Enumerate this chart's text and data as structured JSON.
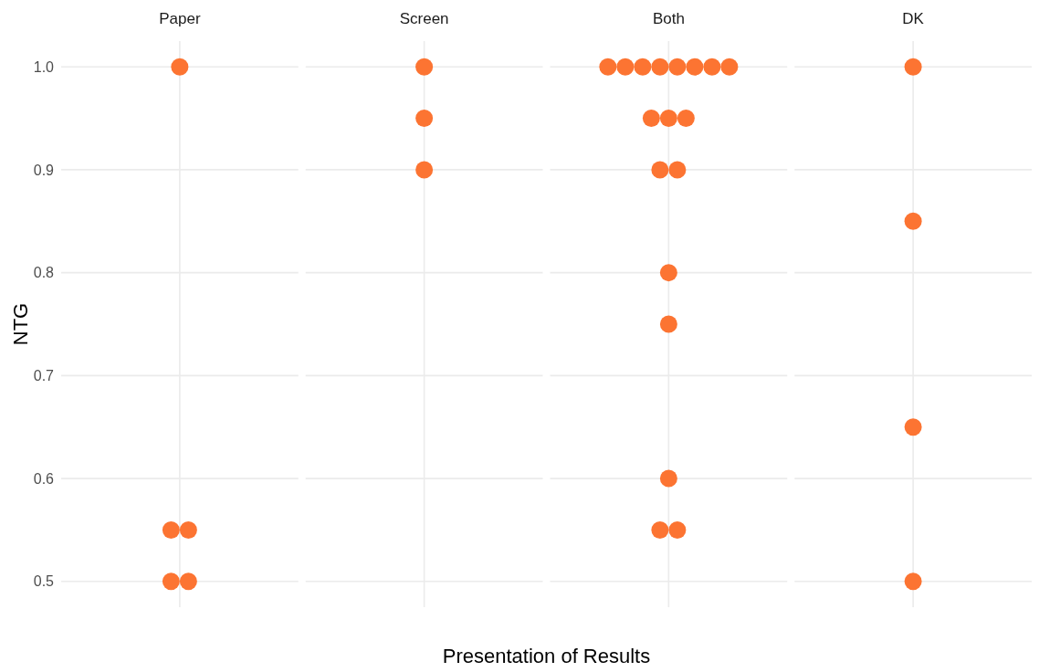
{
  "chart_data": {
    "type": "scatter",
    "xlabel": "Presentation of Results",
    "ylabel": "NTG",
    "categories": [
      "Paper",
      "Screen",
      "Both",
      "DK"
    ],
    "series": [
      {
        "color": "#fc7432",
        "x": [
          "Paper",
          "Paper",
          "Paper",
          "Paper",
          "Paper",
          "Screen",
          "Screen",
          "Screen",
          "Both",
          "Both",
          "Both",
          "Both",
          "Both",
          "Both",
          "Both",
          "Both",
          "Both",
          "Both",
          "Both",
          "Both",
          "Both",
          "Both",
          "Both",
          "Both",
          "Both",
          "Both",
          "DK",
          "DK",
          "DK",
          "DK"
        ],
        "values": [
          1.0,
          0.55,
          0.55,
          0.5,
          0.5,
          1.0,
          0.95,
          0.9,
          1.0,
          1.0,
          1.0,
          1.0,
          1.0,
          1.0,
          1.0,
          1.0,
          0.95,
          0.95,
          0.95,
          0.9,
          0.9,
          0.8,
          0.75,
          0.6,
          0.55,
          0.55,
          1.0,
          0.85,
          0.65,
          0.5
        ]
      }
    ],
    "ylim": [
      0.475,
      1.025
    ],
    "yticks": [
      {
        "value": 0.5,
        "label": "0.5"
      },
      {
        "value": 0.6,
        "label": "0.6"
      },
      {
        "value": 0.7,
        "label": "0.7"
      },
      {
        "value": 0.8,
        "label": "0.8"
      },
      {
        "value": 0.9,
        "label": "0.9"
      },
      {
        "value": 1.0,
        "label": "1.0"
      }
    ],
    "grid": true,
    "marker": "circle"
  }
}
